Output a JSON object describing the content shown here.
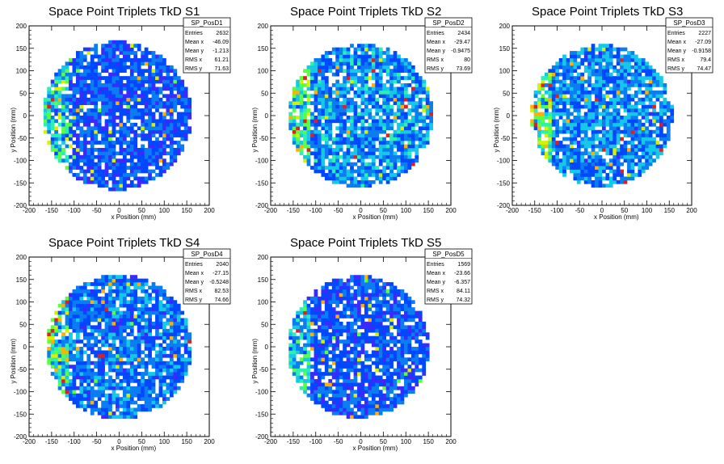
{
  "chart_data": [
    {
      "type": "heatmap",
      "title": "Space Point Triplets TkD S1",
      "xlabel": "x Position (mm)",
      "ylabel": "y Position (mm)",
      "xlim": [
        -200,
        200
      ],
      "ylim": [
        -200,
        200
      ],
      "xticks": [
        -200,
        -150,
        -100,
        -50,
        0,
        50,
        100,
        150,
        200
      ],
      "yticks": [
        -200,
        -150,
        -100,
        -50,
        0,
        50,
        100,
        150,
        200
      ],
      "stats": {
        "name": "SP_PosD1",
        "rows": [
          [
            "Entries",
            "2632"
          ],
          [
            "Mean x",
            "-46.09"
          ],
          [
            "Mean y",
            "-1.213"
          ],
          [
            "RMS x",
            "61.21"
          ],
          [
            "RMS y",
            "71.63"
          ]
        ]
      },
      "distribution": {
        "radius": 165,
        "x_offset": -5,
        "level": 0.25,
        "edge_boost": 0.5
      }
    },
    {
      "type": "heatmap",
      "title": "Space Point Triplets TkD S2",
      "xlabel": "x Position (mm)",
      "ylabel": "y Position (mm)",
      "xlim": [
        -200,
        200
      ],
      "ylim": [
        -200,
        200
      ],
      "xticks": [
        -200,
        -150,
        -100,
        -50,
        0,
        50,
        100,
        150,
        200
      ],
      "yticks": [
        -200,
        -150,
        -100,
        -50,
        0,
        50,
        100,
        150,
        200
      ],
      "stats": {
        "name": "SP_PosD2",
        "rows": [
          [
            "Entries",
            "2434"
          ],
          [
            "Mean x",
            "-29.47"
          ],
          [
            "Mean y",
            "-0.9475"
          ],
          [
            "RMS x",
            "80"
          ],
          [
            "RMS y",
            "73.69"
          ]
        ]
      },
      "distribution": {
        "radius": 160,
        "x_offset": 0,
        "level": 0.35,
        "edge_boost": 0.45
      }
    },
    {
      "type": "heatmap",
      "title": "Space Point Triplets TkD S3",
      "xlabel": "x Position (mm)",
      "ylabel": "y Position (mm)",
      "xlim": [
        -200,
        200
      ],
      "ylim": [
        -200,
        200
      ],
      "xticks": [
        -200,
        -150,
        -100,
        -50,
        0,
        50,
        100,
        150,
        200
      ],
      "yticks": [
        -200,
        -150,
        -100,
        -50,
        0,
        50,
        100,
        150,
        200
      ],
      "stats": {
        "name": "SP_PosD3",
        "rows": [
          [
            "Entries",
            "2227"
          ],
          [
            "Mean x",
            "-27.09"
          ],
          [
            "Mean y",
            "-0.9158"
          ],
          [
            "RMS x",
            "79.4"
          ],
          [
            "RMS y",
            "74.47"
          ]
        ]
      },
      "distribution": {
        "radius": 158,
        "x_offset": 0,
        "level": 0.33,
        "edge_boost": 0.5
      }
    },
    {
      "type": "heatmap",
      "title": "Space Point Triplets TkD S4",
      "xlabel": "x Position (mm)",
      "ylabel": "y Position (mm)",
      "xlim": [
        -200,
        200
      ],
      "ylim": [
        -200,
        200
      ],
      "xticks": [
        -200,
        -150,
        -100,
        -50,
        0,
        50,
        100,
        150,
        200
      ],
      "yticks": [
        -200,
        -150,
        -100,
        -50,
        0,
        50,
        100,
        150,
        200
      ],
      "stats": {
        "name": "SP_PosD4",
        "rows": [
          [
            "Entries",
            "2040"
          ],
          [
            "Mean x",
            "-27.15"
          ],
          [
            "Mean y",
            "-0.5248"
          ],
          [
            "RMS x",
            "82.53"
          ],
          [
            "RMS y",
            "74.66"
          ]
        ]
      },
      "distribution": {
        "radius": 162,
        "x_offset": 0,
        "level": 0.3,
        "edge_boost": 0.55
      }
    },
    {
      "type": "heatmap",
      "title": "Space Point Triplets TkD S5",
      "xlabel": "x Position (mm)",
      "ylabel": "y Position (mm)",
      "xlim": [
        -200,
        200
      ],
      "ylim": [
        -200,
        200
      ],
      "xticks": [
        -200,
        -150,
        -100,
        -50,
        0,
        50,
        100,
        150,
        200
      ],
      "yticks": [
        -200,
        -150,
        -100,
        -50,
        0,
        50,
        100,
        150,
        200
      ],
      "stats": {
        "name": "SP_PosD5",
        "rows": [
          [
            "Entries",
            "1569"
          ],
          [
            "Mean x",
            "-23.66"
          ],
          [
            "Mean y",
            "-6.357"
          ],
          [
            "RMS x",
            "84.11"
          ],
          [
            "RMS y",
            "74.32"
          ]
        ]
      },
      "distribution": {
        "radius": 158,
        "x_offset": -5,
        "level": 0.25,
        "edge_boost": 0.4
      }
    }
  ],
  "palette": [
    "#6a00ff",
    "#3a2aff",
    "#0048ff",
    "#0a7ef0",
    "#16c8e8",
    "#2cf0b0",
    "#5cff40",
    "#d8f000",
    "#ffb000",
    "#e02020"
  ]
}
